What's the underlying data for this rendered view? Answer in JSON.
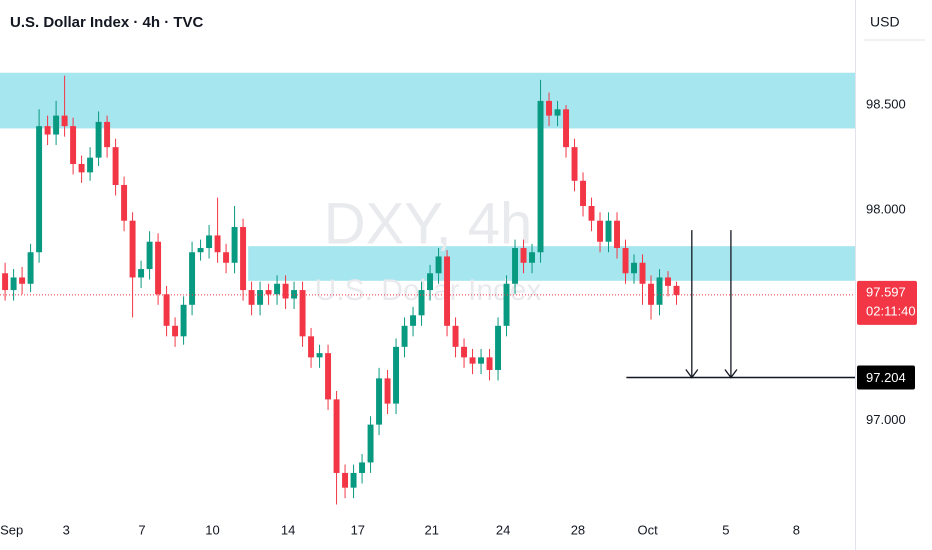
{
  "chart_data": {
    "type": "candlestick",
    "title": "U.S. Dollar Index · 4h · TVC",
    "currency": "USD",
    "watermark": "DXY, 4h",
    "watermark_sub": "U.S. Dollar Index",
    "up_color": "#089981",
    "down_color": "#f23645",
    "x": [
      0,
      1,
      2,
      3,
      4,
      5,
      6,
      7,
      8,
      9,
      10,
      11,
      12,
      13,
      14,
      15,
      16,
      17,
      18,
      19,
      20,
      21,
      22,
      23,
      24,
      25,
      26,
      27,
      28,
      29,
      30,
      31,
      32,
      33,
      34,
      35,
      36,
      37,
      38,
      39,
      40,
      41,
      42,
      43,
      44,
      45,
      46,
      47,
      48,
      49,
      50,
      51,
      52,
      53,
      54,
      55,
      56,
      57,
      58,
      59,
      60,
      61,
      62,
      63,
      64,
      65,
      66,
      67,
      68,
      69,
      70,
      71,
      72,
      73,
      74,
      75,
      76,
      77,
      78,
      79
    ],
    "open": [
      97.7,
      97.62,
      97.68,
      97.65,
      97.8,
      98.4,
      98.36,
      98.45,
      98.4,
      98.22,
      98.18,
      98.25,
      98.42,
      98.3,
      98.12,
      97.95,
      97.68,
      97.72,
      97.85,
      97.6,
      97.45,
      97.4,
      97.55,
      97.8,
      97.82,
      97.88,
      97.8,
      97.75,
      97.92,
      97.62,
      97.55,
      97.62,
      97.6,
      97.65,
      97.58,
      97.62,
      97.4,
      97.3,
      97.32,
      97.1,
      96.75,
      96.68,
      96.75,
      96.8,
      96.98,
      97.2,
      97.08,
      97.35,
      97.45,
      97.5,
      97.62,
      97.7,
      97.78,
      97.45,
      97.35,
      97.3,
      97.27,
      97.3,
      97.24,
      97.45,
      97.65,
      97.82,
      97.75,
      97.8,
      98.52,
      98.45,
      98.48,
      98.3,
      98.14,
      98.02,
      97.95,
      97.85,
      97.95,
      97.82,
      97.7,
      97.75,
      97.65,
      97.55,
      97.68,
      97.64
    ],
    "high": [
      97.75,
      97.72,
      97.73,
      97.84,
      98.48,
      98.45,
      98.52,
      98.64,
      98.44,
      98.26,
      98.3,
      98.47,
      98.45,
      98.34,
      98.16,
      97.99,
      97.76,
      97.9,
      97.89,
      97.64,
      97.49,
      97.59,
      97.85,
      97.86,
      97.93,
      98.06,
      97.84,
      98.02,
      97.96,
      97.66,
      97.66,
      97.65,
      97.69,
      97.69,
      97.66,
      97.66,
      97.44,
      97.36,
      97.36,
      97.14,
      96.79,
      96.79,
      96.84,
      97.02,
      97.25,
      97.24,
      97.39,
      97.49,
      97.54,
      97.66,
      97.74,
      97.82,
      97.81,
      97.49,
      97.39,
      97.34,
      97.34,
      97.34,
      97.49,
      97.69,
      97.86,
      97.86,
      97.84,
      98.62,
      98.56,
      98.52,
      98.5,
      98.34,
      98.18,
      98.06,
      97.99,
      97.99,
      97.99,
      97.86,
      97.79,
      97.79,
      97.69,
      97.72,
      97.71,
      97.66
    ],
    "low": [
      97.57,
      97.57,
      97.6,
      97.61,
      97.75,
      98.31,
      98.31,
      98.35,
      98.17,
      98.13,
      98.14,
      98.21,
      98.25,
      98.07,
      97.9,
      97.49,
      97.63,
      97.67,
      97.55,
      97.4,
      97.35,
      97.36,
      97.5,
      97.76,
      97.77,
      97.75,
      97.7,
      97.7,
      97.57,
      97.5,
      97.5,
      97.55,
      97.55,
      97.53,
      97.53,
      97.35,
      97.25,
      97.25,
      97.05,
      96.6,
      96.63,
      96.63,
      96.7,
      96.75,
      96.93,
      97.03,
      97.03,
      97.3,
      97.4,
      97.45,
      97.57,
      97.65,
      97.4,
      97.3,
      97.25,
      97.22,
      97.22,
      97.19,
      97.19,
      97.4,
      97.6,
      97.7,
      97.7,
      97.75,
      98.4,
      98.4,
      98.25,
      98.09,
      97.97,
      97.9,
      97.8,
      97.8,
      97.77,
      97.65,
      97.65,
      97.55,
      97.48,
      97.5,
      97.59,
      97.55
    ],
    "close": [
      97.62,
      97.68,
      97.65,
      97.8,
      98.4,
      98.36,
      98.45,
      98.4,
      98.22,
      98.18,
      98.25,
      98.42,
      98.3,
      98.12,
      97.95,
      97.68,
      97.72,
      97.85,
      97.6,
      97.45,
      97.4,
      97.55,
      97.8,
      97.82,
      97.88,
      97.8,
      97.75,
      97.92,
      97.62,
      97.55,
      97.62,
      97.6,
      97.65,
      97.58,
      97.62,
      97.4,
      97.3,
      97.32,
      97.1,
      96.75,
      96.68,
      96.75,
      96.8,
      96.98,
      97.2,
      97.08,
      97.35,
      97.45,
      97.5,
      97.62,
      97.7,
      97.78,
      97.45,
      97.35,
      97.3,
      97.27,
      97.3,
      97.24,
      97.45,
      97.65,
      97.82,
      97.75,
      97.8,
      98.52,
      98.45,
      98.48,
      98.3,
      98.14,
      98.02,
      97.95,
      97.85,
      97.95,
      97.82,
      97.7,
      97.75,
      97.65,
      97.55,
      97.68,
      97.64,
      97.597
    ],
    "last_price": {
      "value": 97.597,
      "label": "97.597",
      "countdown": "02:11:40"
    },
    "hline": {
      "value": 97.204,
      "label": "97.204",
      "x_start": 73.1
    },
    "zones": [
      {
        "ymin": 98.389,
        "ymax": 98.654,
        "x_start": -0.6,
        "color": "#a6e6ee"
      },
      {
        "ymin": 97.664,
        "ymax": 97.829,
        "x_start": 28.6,
        "color": "#a6e6ee"
      }
    ],
    "arrows": [
      {
        "x": 80.8,
        "from": 97.905,
        "to": 97.204
      },
      {
        "x": 85.4,
        "from": 97.905,
        "to": 97.204
      }
    ],
    "xlim": [
      -0.6,
      100
    ],
    "ylim": [
      96.55,
      99.0
    ],
    "xticks": [
      {
        "value": 0,
        "label": "Sep"
      },
      {
        "value": 7.2,
        "label": "3"
      },
      {
        "value": 16.1,
        "label": "7"
      },
      {
        "value": 24.4,
        "label": "10"
      },
      {
        "value": 33.3,
        "label": "14"
      },
      {
        "value": 41.5,
        "label": "17"
      },
      {
        "value": 50.2,
        "label": "21"
      },
      {
        "value": 58.6,
        "label": "24"
      },
      {
        "value": 67.4,
        "label": "28"
      },
      {
        "value": 75.6,
        "label": "Oct"
      },
      {
        "value": 84.8,
        "label": "5"
      },
      {
        "value": 93.1,
        "label": "8"
      }
    ],
    "yticks": [
      {
        "value": 98.5,
        "label": "98.500"
      },
      {
        "value": 98.0,
        "label": "98.000"
      },
      {
        "value": 97.0,
        "label": "97.000"
      }
    ],
    "grid": false
  }
}
